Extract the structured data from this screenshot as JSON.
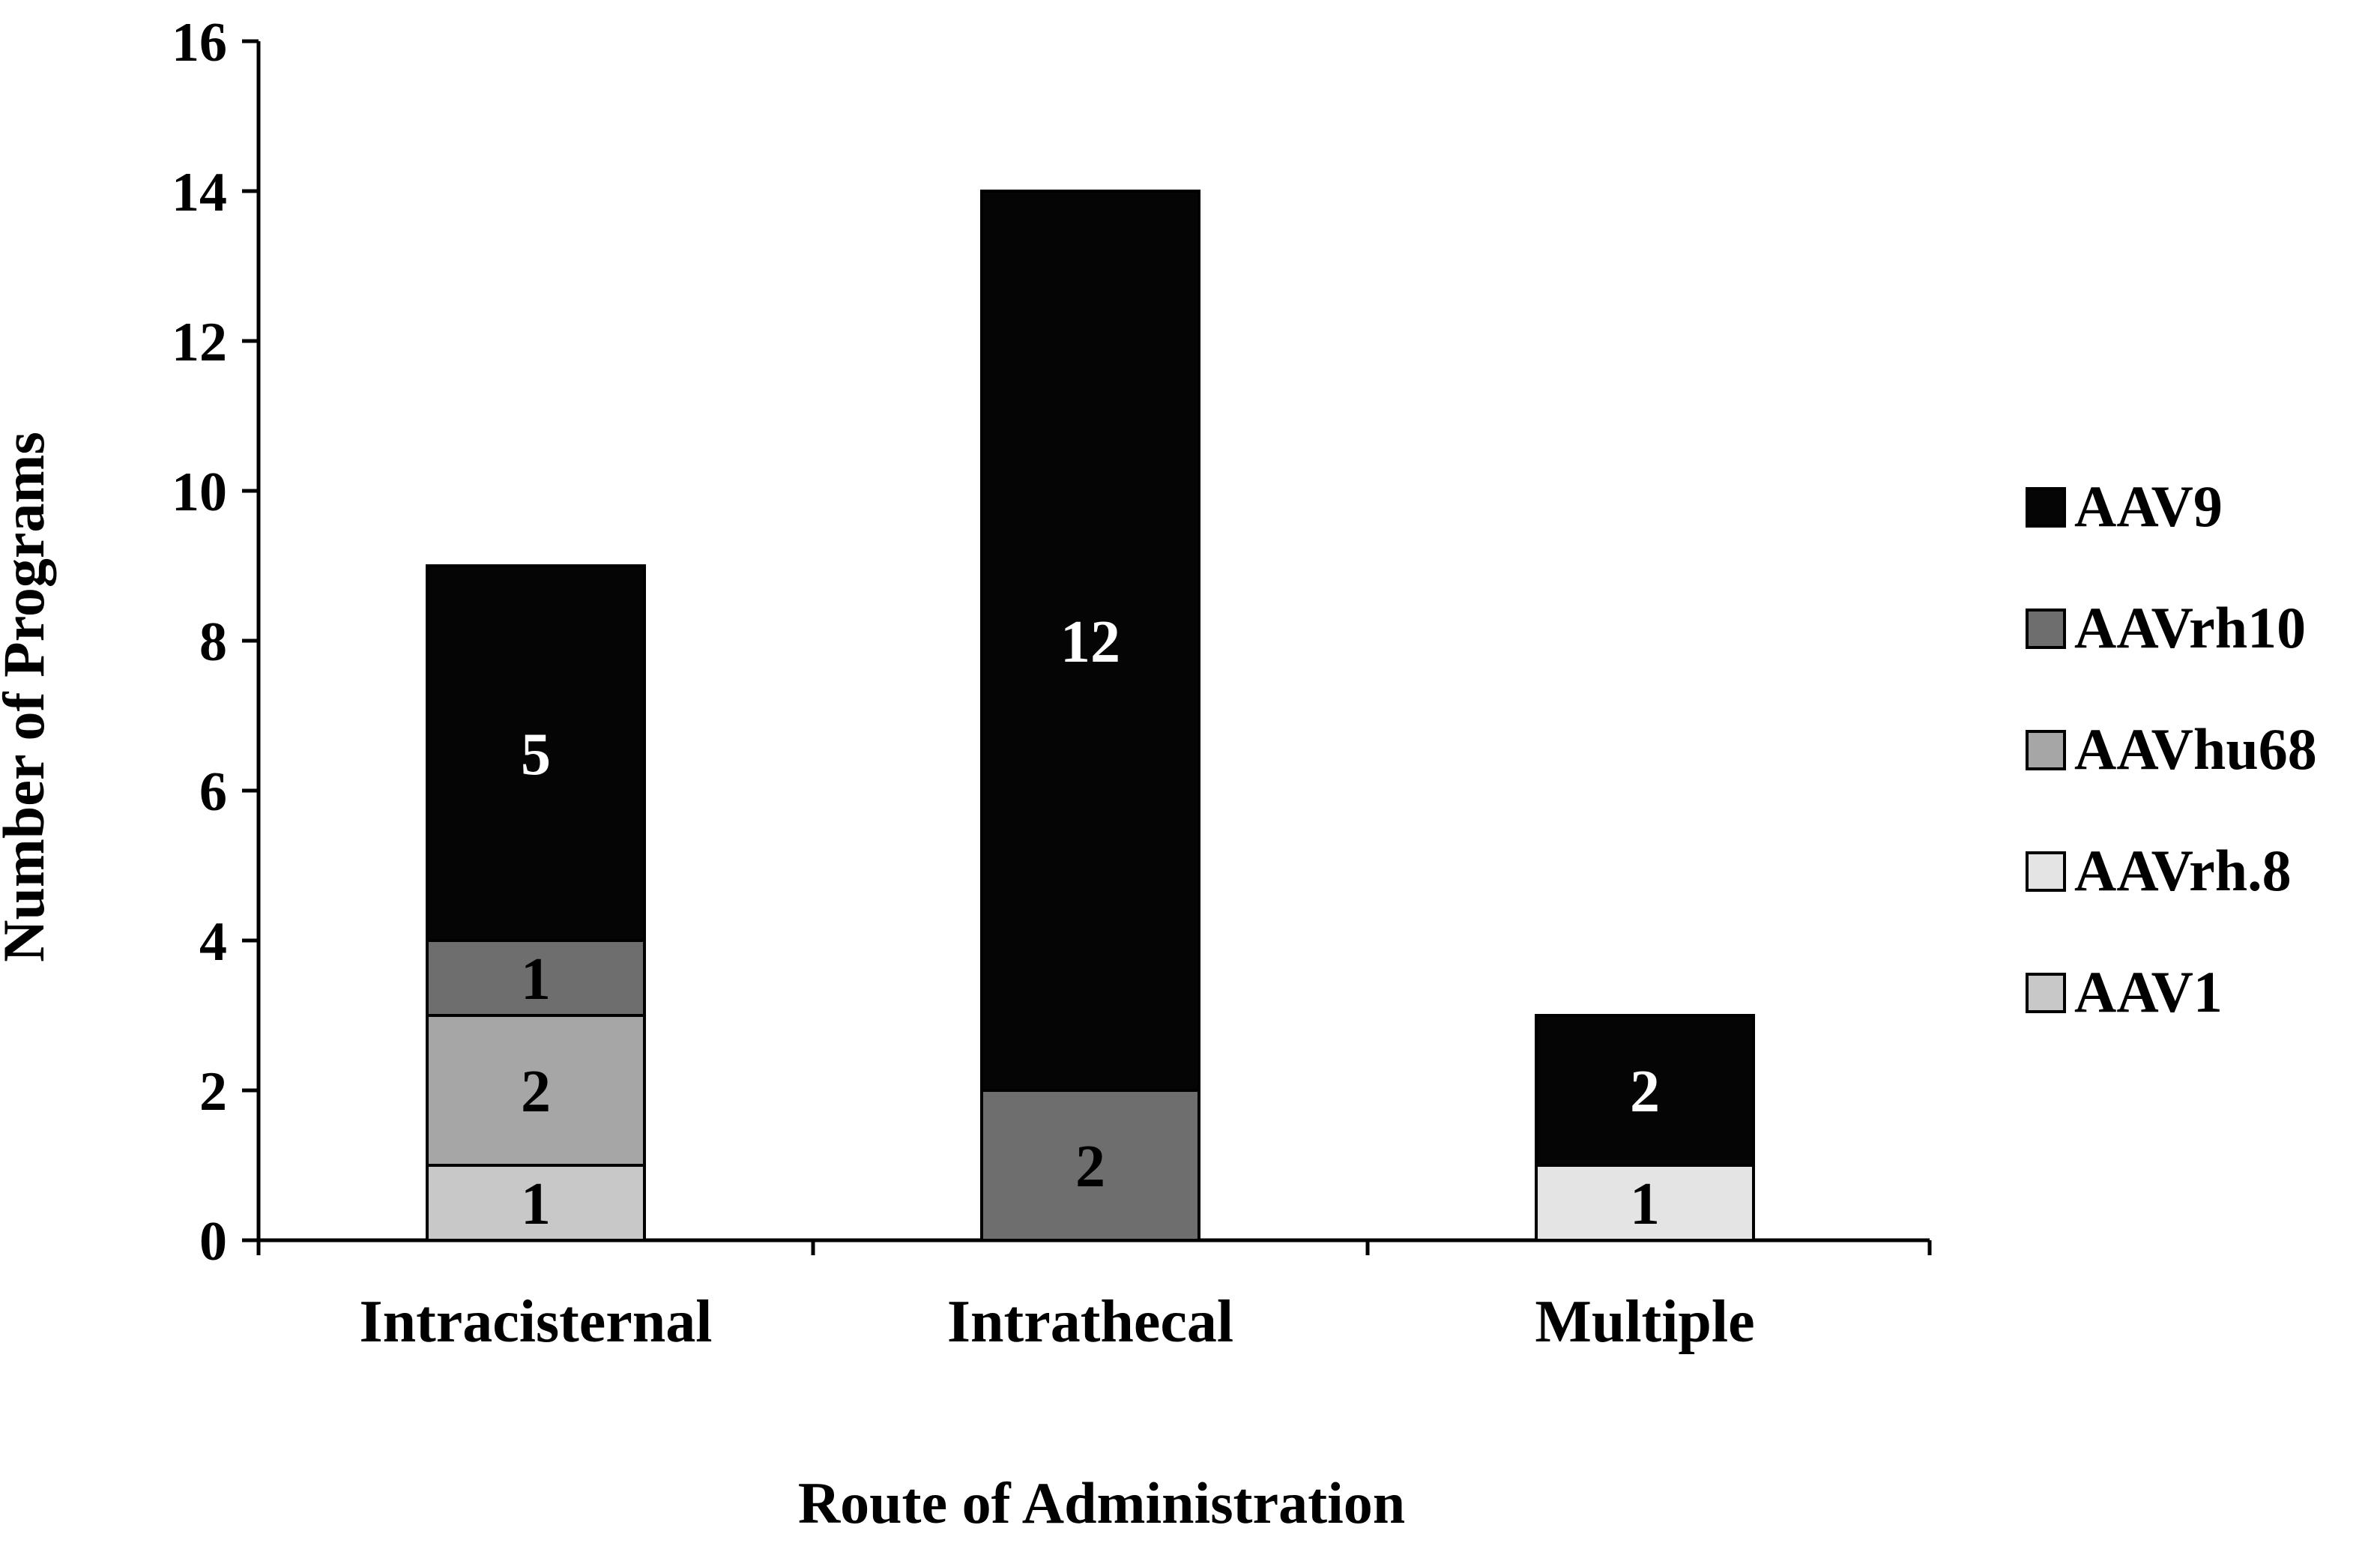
{
  "chart_data": {
    "type": "bar",
    "stacked": true,
    "title": "",
    "xlabel": "Route of Administration",
    "ylabel": "Number of Programs",
    "categories": [
      "Intracisternal",
      "Intrathecal",
      "Multiple"
    ],
    "ylim": [
      0,
      16
    ],
    "yticks": [
      "0",
      "2",
      "4",
      "6",
      "8",
      "10",
      "12",
      "14",
      "16"
    ],
    "grid": false,
    "legend_position": "right",
    "series": [
      {
        "name": "AAV1",
        "values": [
          1,
          0,
          0
        ],
        "labels": [
          "1",
          "",
          ""
        ],
        "color": "#c8c8c8",
        "label_color": "#000000"
      },
      {
        "name": "AAVrh.8",
        "values": [
          0,
          0,
          1
        ],
        "labels": [
          "",
          "",
          "1"
        ],
        "color": "#e4e4e4",
        "label_color": "#000000"
      },
      {
        "name": "AAVhu68",
        "values": [
          2,
          0,
          0
        ],
        "labels": [
          "2",
          "",
          ""
        ],
        "color": "#a6a6a6",
        "label_color": "#000000"
      },
      {
        "name": "AAVrh10",
        "values": [
          1,
          2,
          0
        ],
        "labels": [
          "1",
          "2",
          ""
        ],
        "color": "#6e6e6e",
        "label_color": "#000000"
      },
      {
        "name": "AAV9",
        "values": [
          5,
          12,
          2
        ],
        "labels": [
          "5",
          "12",
          "2"
        ],
        "color": "#050505",
        "label_color": "#ffffff"
      }
    ],
    "legend_order": [
      "AAV9",
      "AAVrh10",
      "AAVhu68",
      "AAVrh.8",
      "AAV1"
    ]
  }
}
